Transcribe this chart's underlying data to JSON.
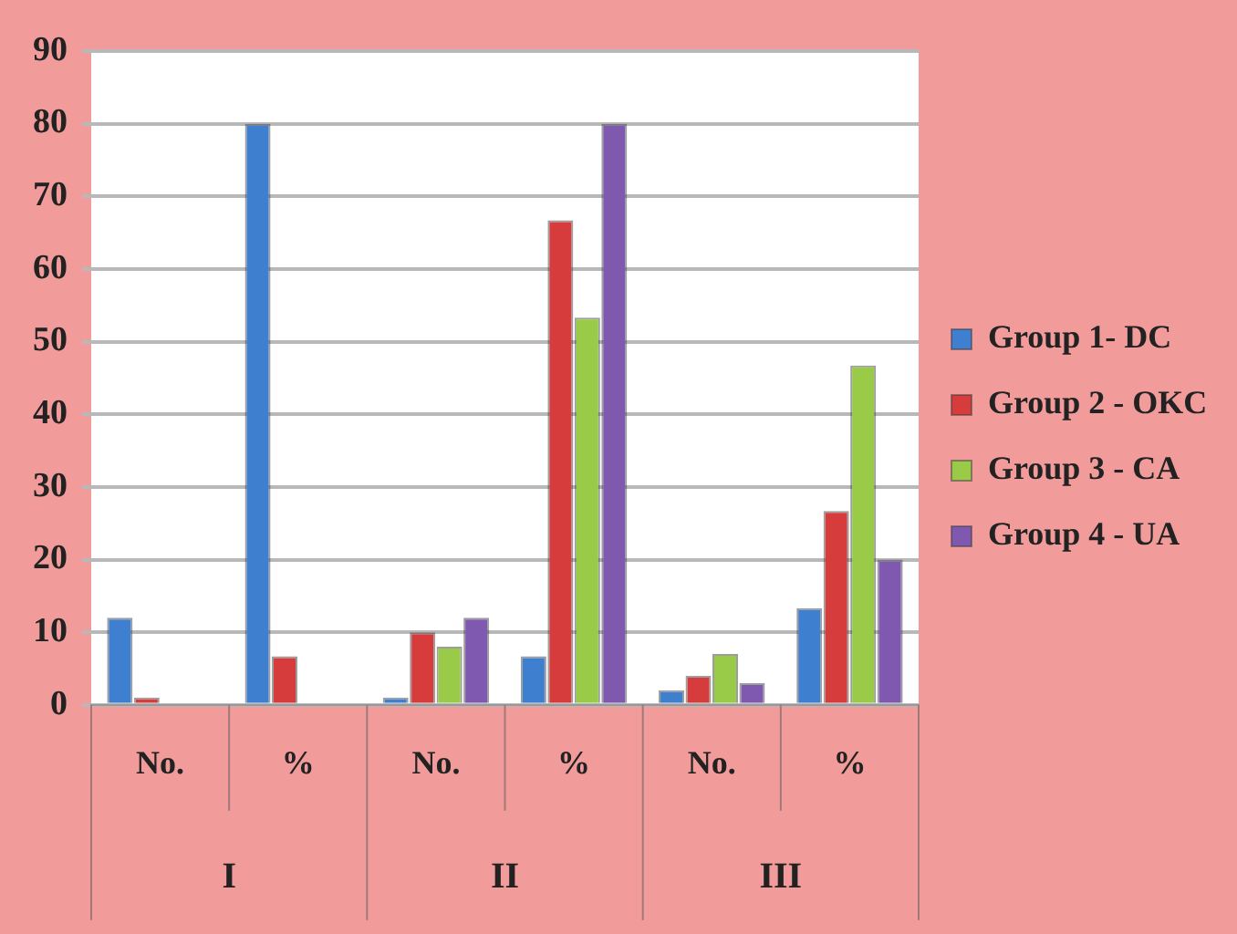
{
  "chart_data": {
    "type": "bar",
    "categories": [
      "No.",
      "%",
      "No.",
      "%",
      "No.",
      "%"
    ],
    "series": [
      {
        "name": "Group 1- DC",
        "color": "#3f7fd0",
        "values": [
          12,
          80,
          1,
          6.7,
          2,
          13.3
        ]
      },
      {
        "name": "Group 2 - OKC",
        "color": "#d63c3c",
        "values": [
          1,
          6.7,
          10,
          66.7,
          4,
          26.7
        ]
      },
      {
        "name": "Group 3 - CA",
        "color": "#9acb48",
        "values": [
          0,
          0,
          8,
          53.3,
          7,
          46.7
        ]
      },
      {
        "name": "Group 4 - UA",
        "color": "#7f58b0",
        "values": [
          0,
          0,
          12,
          80,
          3,
          20
        ]
      }
    ],
    "annotations": [
      "I",
      "II",
      "III"
    ],
    "ylim": [
      0,
      90
    ],
    "yticks": [
      0,
      10,
      20,
      30,
      40,
      50,
      60,
      70,
      80,
      90
    ],
    "grid": "y",
    "legend": "right"
  }
}
